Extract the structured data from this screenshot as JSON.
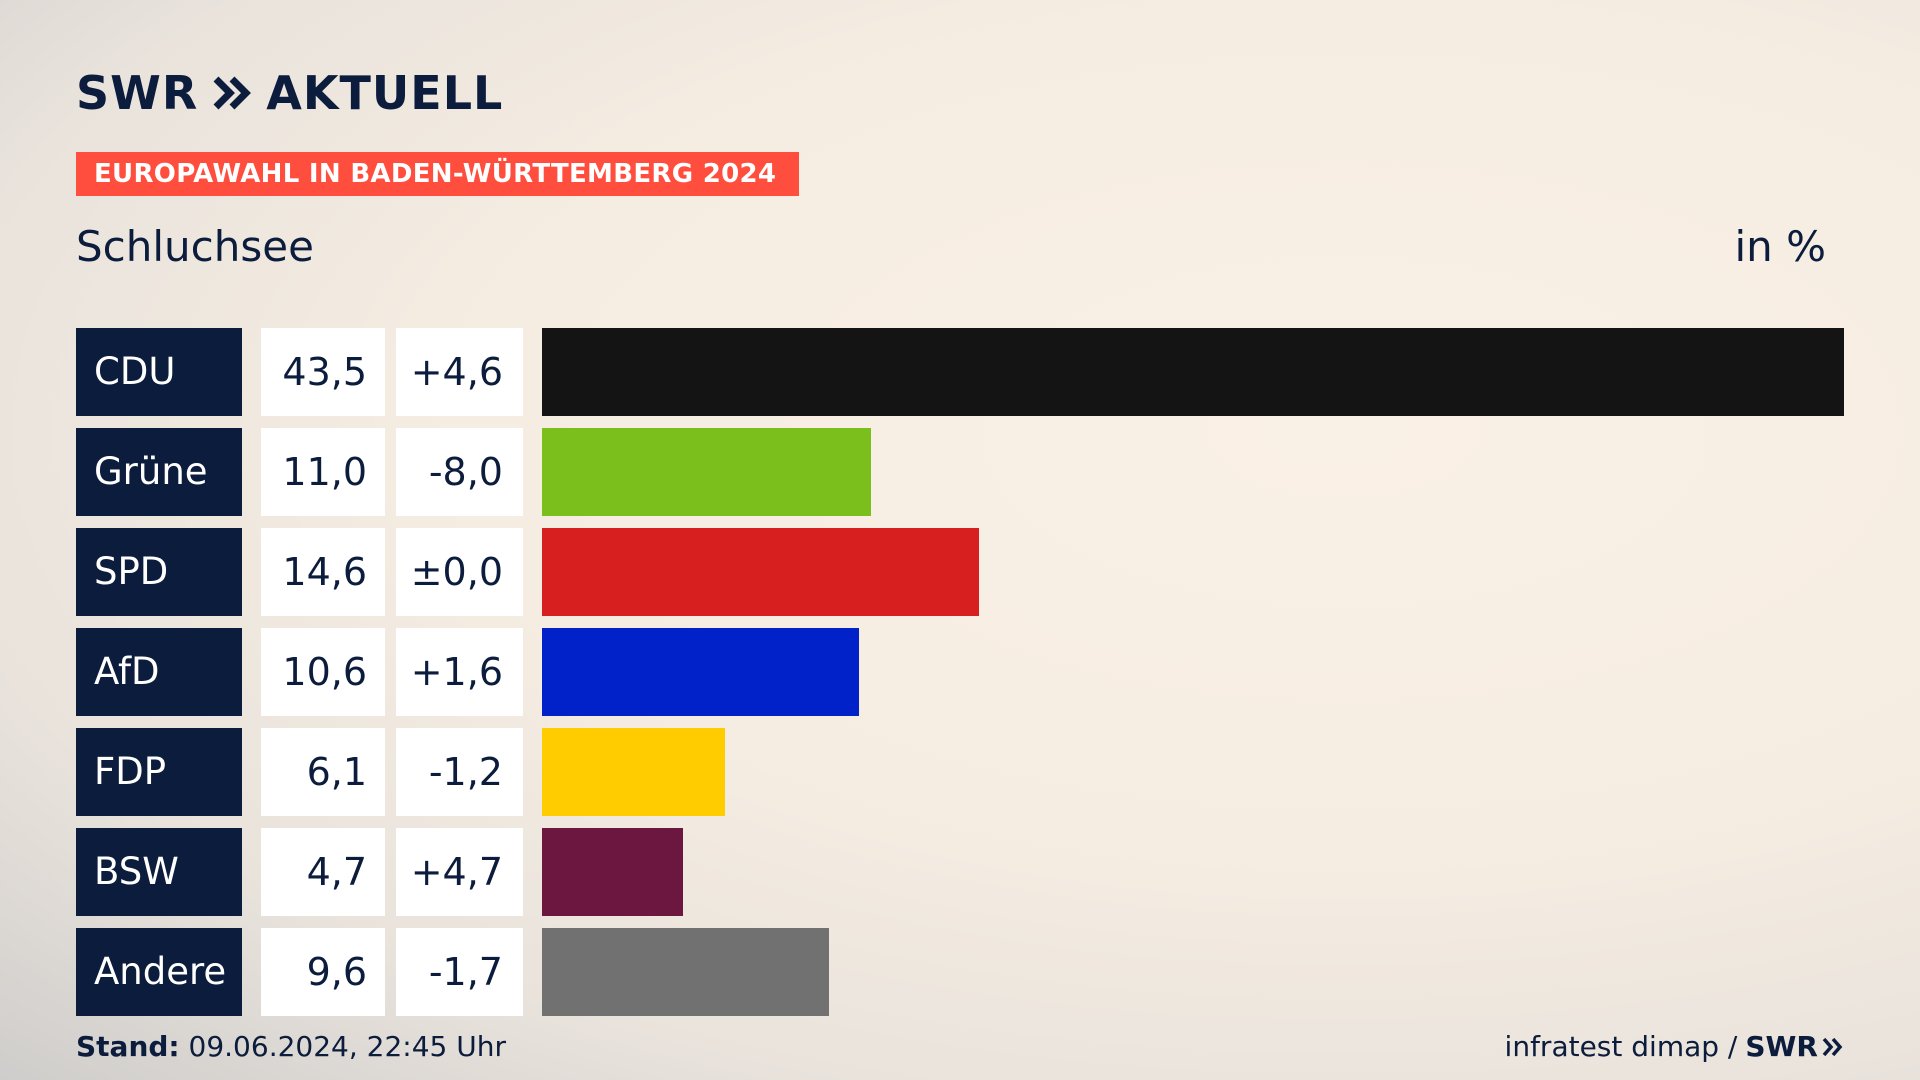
{
  "header": {
    "logo_swr": "SWR",
    "logo_aktuell": "AKTUELL",
    "banner": "EUROPAWAHL IN BADEN-WÜRTTEMBERG 2024",
    "subtitle": "Schluchsee",
    "unit": "in %"
  },
  "footer": {
    "stand_label": "Stand:",
    "stand_value": "09.06.2024, 22:45 Uhr",
    "source": "infratest dimap /",
    "source_logo": "SWR"
  },
  "colors": {
    "navy": "#0c1c3c",
    "banner": "#ff4e3d"
  },
  "chart_data": {
    "type": "bar",
    "orientation": "horizontal",
    "categories": [
      "CDU",
      "Grüne",
      "SPD",
      "AfD",
      "FDP",
      "BSW",
      "Andere"
    ],
    "values": [
      43.5,
      11.0,
      14.6,
      10.6,
      6.1,
      4.7,
      9.6
    ],
    "value_labels": [
      "43,5",
      "11,0",
      "14,6",
      "10,6",
      "6,1",
      "4,7",
      "9,6"
    ],
    "diff_labels": [
      "+4,6",
      "-8,0",
      "±0,0",
      "+1,6",
      "-1,2",
      "+4,7",
      "-1,7"
    ],
    "colors": [
      "#141414",
      "#7abf1c",
      "#d81f1f",
      "#0022c8",
      "#ffcc00",
      "#6b1740",
      "#717171"
    ],
    "title": "Schluchsee",
    "xlabel": "",
    "ylabel": "in %",
    "xlim": [
      0,
      43.5
    ],
    "grid": false
  }
}
